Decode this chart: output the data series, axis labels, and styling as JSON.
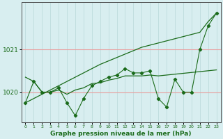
{
  "background_color": "#d8eef0",
  "grid_color_h": "#e8a0a0",
  "grid_color_v": "#b8d8d8",
  "line_color": "#1a6b1a",
  "x": [
    0,
    1,
    2,
    3,
    4,
    5,
    6,
    7,
    8,
    9,
    10,
    11,
    12,
    13,
    14,
    15,
    16,
    17,
    18,
    19,
    20,
    21,
    22,
    23
  ],
  "straight_line_y": [
    1019.75,
    1019.85,
    1019.95,
    1020.05,
    1020.15,
    1020.25,
    1020.35,
    1020.45,
    1020.55,
    1020.65,
    1020.73,
    1020.81,
    1020.89,
    1020.97,
    1021.05,
    1021.1,
    1021.15,
    1021.2,
    1021.25,
    1021.3,
    1021.35,
    1021.4,
    1021.65,
    1021.85
  ],
  "flat_line_y": [
    1020.35,
    1020.25,
    1020.0,
    1020.0,
    1020.05,
    1019.95,
    1020.05,
    1020.1,
    1020.2,
    1020.22,
    1020.28,
    1020.32,
    1020.38,
    1020.38,
    1020.38,
    1020.4,
    1020.38,
    1020.4,
    1020.42,
    1020.44,
    1020.46,
    1020.48,
    1020.5,
    1020.52
  ],
  "zigzag_y": [
    1019.75,
    1020.25,
    1020.0,
    1020.0,
    1020.1,
    1019.75,
    1019.45,
    1019.85,
    1020.15,
    1020.25,
    1020.35,
    1020.4,
    1020.55,
    1020.45,
    1020.45,
    1020.5,
    1019.85,
    1019.65,
    1020.3,
    1020.0,
    1020.0,
    1021.0,
    1021.55,
    1021.85
  ],
  "ylim_min": 1019.3,
  "ylim_max": 1022.1,
  "yticks": [
    1020,
    1021
  ],
  "xlabel": "Graphe pression niveau de la mer (hPa)",
  "spine_color": "#4a4a4a"
}
